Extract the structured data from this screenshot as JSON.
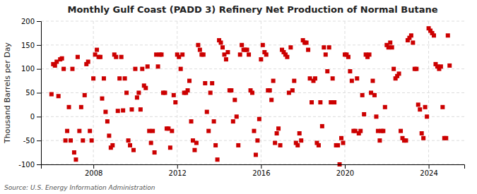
{
  "chart_data": {
    "type": "scatter",
    "title": "Monthly Gulf Coast (PADD 3) Refinery Net Production of Normal Butane",
    "y_label": "Thousand Barrels per Day",
    "annotations": [
      "Source: U.S. Energy Information Administration"
    ],
    "color": "#cc0000",
    "marker": "square",
    "grid": true,
    "xlim": [
      2005.5,
      2025.7
    ],
    "xticks": [
      2008,
      2012,
      2016,
      2020,
      2024
    ],
    "ylim": [
      -100,
      200
    ],
    "yticks": [
      -100,
      -50,
      0,
      50,
      100,
      150,
      200
    ],
    "x": [
      2006.0,
      2006.083,
      2006.167,
      2006.25,
      2006.333,
      2006.417,
      2006.5,
      2006.583,
      2006.667,
      2006.75,
      2006.833,
      2006.917,
      2007.0,
      2007.083,
      2007.167,
      2007.25,
      2007.333,
      2007.417,
      2007.5,
      2007.583,
      2007.667,
      2007.75,
      2007.833,
      2007.917,
      2008.0,
      2008.083,
      2008.167,
      2008.25,
      2008.333,
      2008.417,
      2008.5,
      2008.583,
      2008.667,
      2008.75,
      2008.833,
      2008.917,
      2009.0,
      2009.083,
      2009.167,
      2009.25,
      2009.333,
      2009.417,
      2009.5,
      2009.583,
      2009.667,
      2009.75,
      2009.833,
      2009.917,
      2010.0,
      2010.083,
      2010.167,
      2010.25,
      2010.333,
      2010.417,
      2010.5,
      2010.583,
      2010.667,
      2010.75,
      2010.833,
      2010.917,
      2011.0,
      2011.083,
      2011.167,
      2011.25,
      2011.333,
      2011.417,
      2011.5,
      2011.583,
      2011.667,
      2011.75,
      2011.833,
      2011.917,
      2012.0,
      2012.083,
      2012.167,
      2012.25,
      2012.333,
      2012.417,
      2012.5,
      2012.583,
      2012.667,
      2012.75,
      2012.833,
      2012.917,
      2013.0,
      2013.083,
      2013.167,
      2013.25,
      2013.333,
      2013.417,
      2013.5,
      2013.583,
      2013.667,
      2013.75,
      2013.833,
      2013.917,
      2014.0,
      2014.083,
      2014.167,
      2014.25,
      2014.333,
      2014.417,
      2014.5,
      2014.583,
      2014.667,
      2014.75,
      2014.833,
      2014.917,
      2015.0,
      2015.083,
      2015.167,
      2015.25,
      2015.333,
      2015.417,
      2015.5,
      2015.583,
      2015.667,
      2015.75,
      2015.833,
      2015.917,
      2016.0,
      2016.083,
      2016.167,
      2016.25,
      2016.333,
      2016.417,
      2016.5,
      2016.583,
      2016.667,
      2016.75,
      2016.833,
      2016.917,
      2017.0,
      2017.083,
      2017.167,
      2017.25,
      2017.333,
      2017.417,
      2017.5,
      2017.583,
      2017.667,
      2017.75,
      2017.833,
      2017.917,
      2018.0,
      2018.083,
      2018.167,
      2018.25,
      2018.333,
      2018.417,
      2018.5,
      2018.583,
      2018.667,
      2018.75,
      2018.833,
      2018.917,
      2019.0,
      2019.083,
      2019.167,
      2019.25,
      2019.333,
      2019.417,
      2019.5,
      2019.583,
      2019.667,
      2019.75,
      2019.833,
      2019.917,
      2020.0,
      2020.083,
      2020.167,
      2020.25,
      2020.333,
      2020.417,
      2020.5,
      2020.583,
      2020.667,
      2020.75,
      2020.833,
      2020.917,
      2021.0,
      2021.083,
      2021.167,
      2021.25,
      2021.333,
      2021.417,
      2021.5,
      2021.583,
      2021.667,
      2021.75,
      2021.833,
      2021.917,
      2022.0,
      2022.083,
      2022.167,
      2022.25,
      2022.333,
      2022.417,
      2022.5,
      2022.583,
      2022.667,
      2022.75,
      2022.833,
      2022.917,
      2023.0,
      2023.083,
      2023.167,
      2023.25,
      2023.333,
      2023.417,
      2023.5,
      2023.583,
      2023.667,
      2023.75,
      2023.833,
      2023.917,
      2024.0,
      2024.083,
      2024.167,
      2024.25,
      2024.333,
      2024.417,
      2024.5,
      2024.583,
      2024.667,
      2024.75,
      2024.833,
      2024.917,
      2025.0
    ],
    "values": [
      47,
      110,
      107,
      115,
      43,
      120,
      122,
      100,
      -50,
      -30,
      20,
      -50,
      100,
      -75,
      -90,
      125,
      -30,
      20,
      -50,
      45,
      110,
      115,
      -30,
      -50,
      80,
      130,
      140,
      125,
      125,
      38,
      80,
      10,
      -10,
      -40,
      -65,
      -60,
      130,
      125,
      12,
      80,
      125,
      13,
      80,
      50,
      -50,
      -60,
      15,
      -70,
      100,
      40,
      50,
      15,
      100,
      65,
      60,
      105,
      -30,
      -55,
      -30,
      -75,
      130,
      105,
      130,
      130,
      50,
      50,
      -25,
      -25,
      -65,
      -30,
      45,
      30,
      130,
      125,
      100,
      130,
      50,
      50,
      55,
      75,
      -10,
      -50,
      -70,
      -55,
      150,
      140,
      130,
      130,
      70,
      10,
      -30,
      50,
      70,
      -10,
      -60,
      -90,
      160,
      155,
      145,
      130,
      120,
      135,
      55,
      55,
      -10,
      35,
      0,
      -60,
      130,
      150,
      140,
      140,
      140,
      130,
      55,
      50,
      -30,
      -80,
      -50,
      -5,
      120,
      150,
      135,
      130,
      55,
      55,
      35,
      75,
      -55,
      -35,
      -25,
      -60,
      140,
      135,
      130,
      125,
      50,
      145,
      55,
      75,
      -55,
      -60,
      -35,
      -50,
      160,
      155,
      155,
      140,
      80,
      30,
      75,
      80,
      -55,
      -60,
      30,
      -20,
      145,
      130,
      95,
      145,
      30,
      80,
      30,
      -60,
      -60,
      -100,
      -45,
      -55,
      130,
      130,
      125,
      95,
      75,
      -30,
      -30,
      80,
      -35,
      -30,
      45,
      5,
      130,
      125,
      130,
      50,
      75,
      45,
      0,
      -30,
      -50,
      -30,
      -30,
      20,
      150,
      145,
      155,
      145,
      100,
      80,
      85,
      90,
      -30,
      -45,
      -50,
      -50,
      160,
      165,
      170,
      155,
      100,
      100,
      25,
      15,
      -35,
      -45,
      20,
      0,
      185,
      180,
      175,
      170,
      110,
      105,
      100,
      105,
      20,
      -45,
      -45,
      170,
      107
    ]
  }
}
